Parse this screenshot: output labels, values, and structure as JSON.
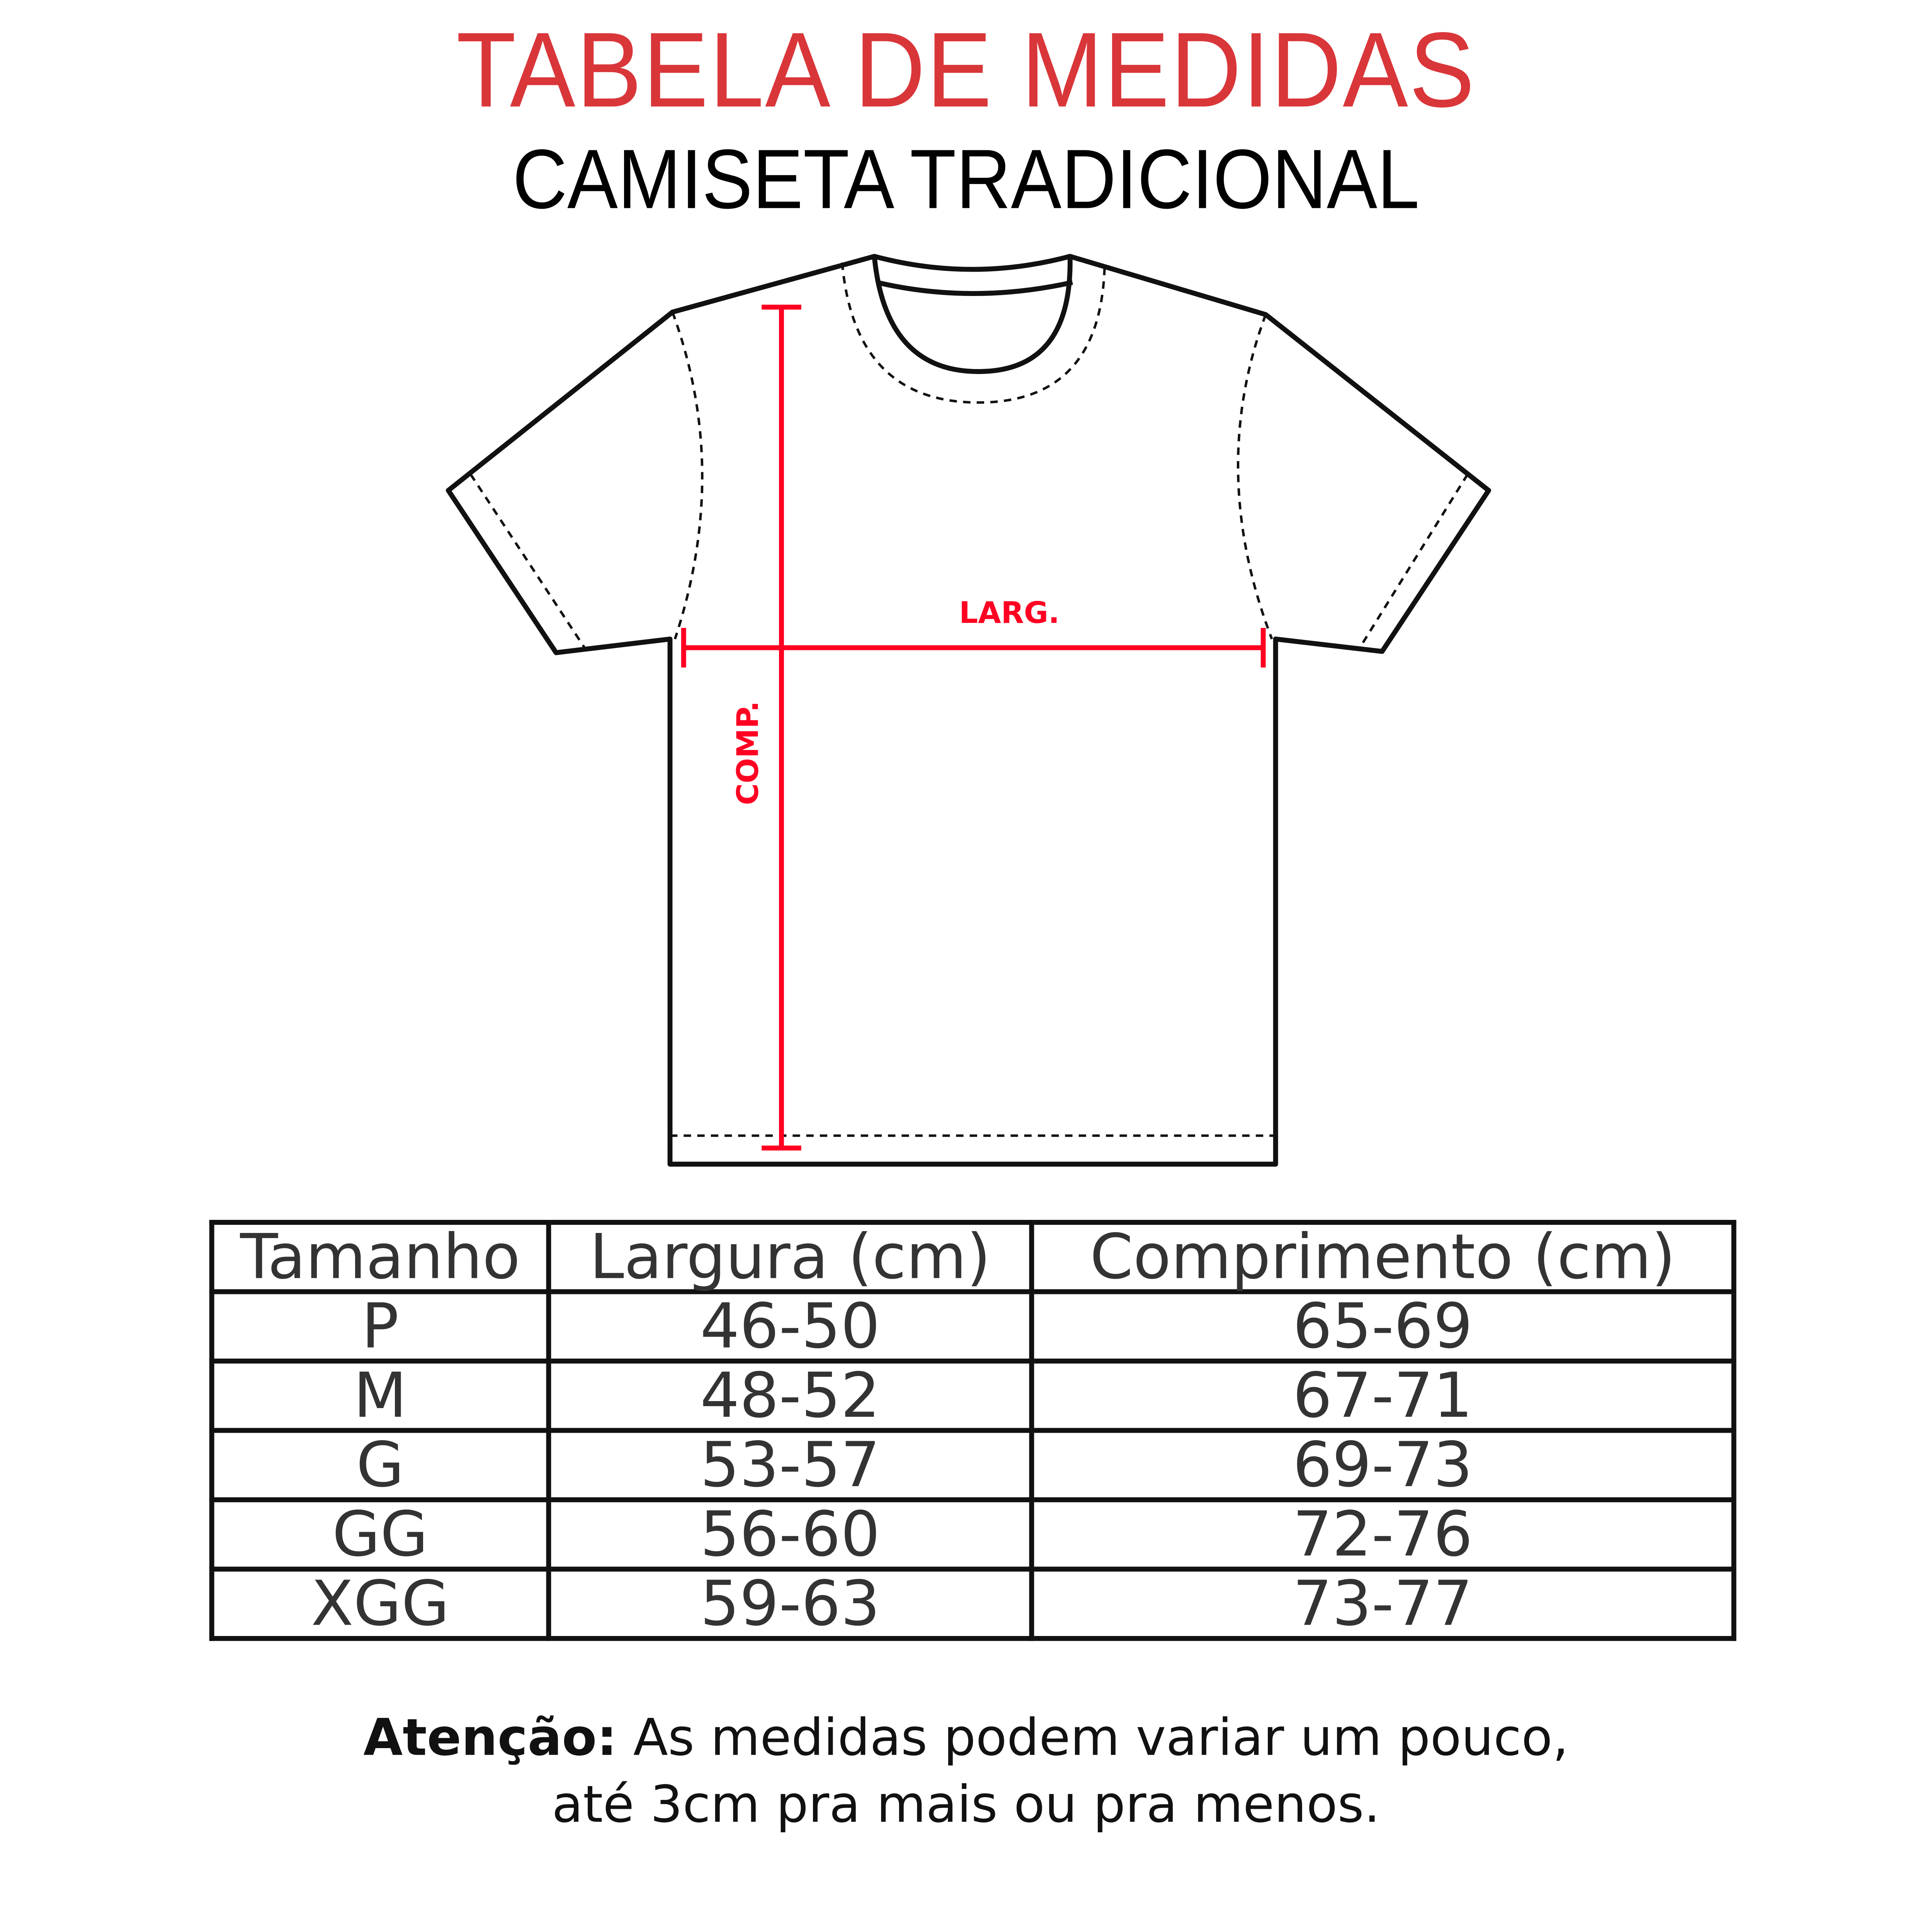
{
  "header": {
    "title": "TABELA DE MEDIDAS",
    "subtitle": "CAMISETA TRADICIONAL"
  },
  "diagram": {
    "width_label": "LARG.",
    "length_label": "COMP.",
    "accent_color": "#ff0022"
  },
  "table": {
    "headers": [
      "Tamanho",
      "Largura (cm)",
      "Comprimento (cm)"
    ],
    "rows": [
      [
        "P",
        "46-50",
        "65-69"
      ],
      [
        "M",
        "48-52",
        "67-71"
      ],
      [
        "G",
        "53-57",
        "69-73"
      ],
      [
        "GG",
        "56-60",
        "72-76"
      ],
      [
        "XGG",
        "59-63",
        "73-77"
      ]
    ]
  },
  "note": {
    "label": "Atenção:",
    "line1": "As medidas podem variar um pouco,",
    "line2": "até 3cm pra mais ou pra menos."
  }
}
